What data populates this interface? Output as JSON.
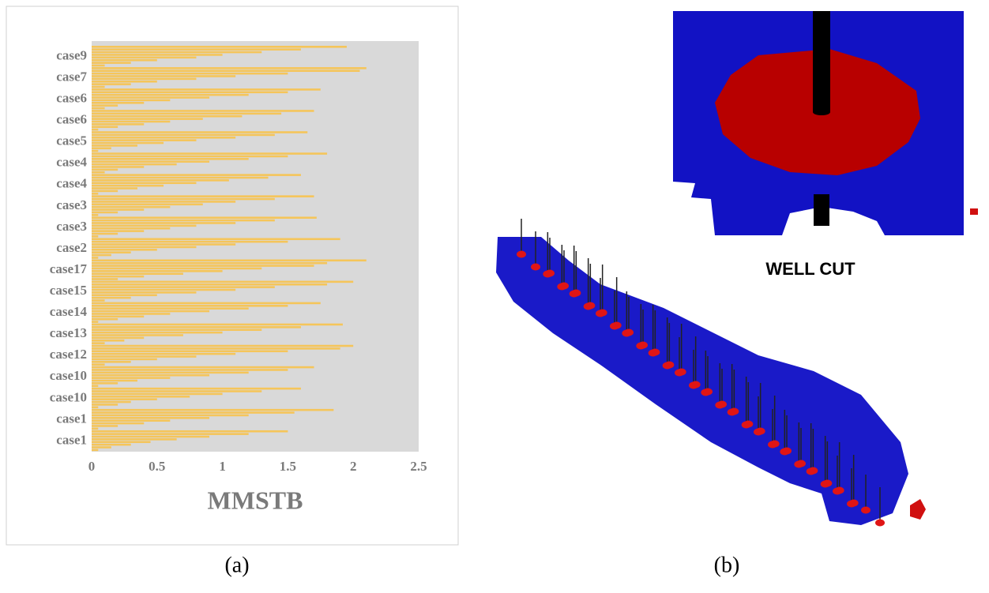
{
  "chart_data": {
    "type": "bar",
    "categories": [
      "case9",
      "case7",
      "case6",
      "case6",
      "case5",
      "case4",
      "case4",
      "case3",
      "case3",
      "case2",
      "case17",
      "case15",
      "case14",
      "case13",
      "case12",
      "case10",
      "case10",
      "case1",
      "case1"
    ],
    "values": [
      [
        1.95,
        1.6,
        1.3,
        1.0,
        0.8,
        0.5,
        0.3,
        0.1
      ],
      [
        2.1,
        2.05,
        1.5,
        1.1,
        0.8,
        0.5,
        0.3,
        0.1
      ],
      [
        1.75,
        1.5,
        1.2,
        0.9,
        0.6,
        0.4,
        0.2,
        0.1
      ],
      [
        1.7,
        1.45,
        1.15,
        0.85,
        0.6,
        0.4,
        0.2,
        0.05
      ],
      [
        1.65,
        1.4,
        1.1,
        0.8,
        0.55,
        0.35,
        0.15,
        0.05
      ],
      [
        1.8,
        1.5,
        1.2,
        0.9,
        0.65,
        0.4,
        0.2,
        0.1
      ],
      [
        1.6,
        1.35,
        1.05,
        0.8,
        0.55,
        0.35,
        0.2,
        0.05
      ],
      [
        1.7,
        1.4,
        1.1,
        0.85,
        0.6,
        0.4,
        0.2,
        0.05
      ],
      [
        1.72,
        1.4,
        1.1,
        0.8,
        0.6,
        0.4,
        0.2,
        0.05
      ],
      [
        1.9,
        1.5,
        1.1,
        0.8,
        0.5,
        0.3,
        0.15,
        0.05
      ],
      [
        2.1,
        1.8,
        1.7,
        1.3,
        1.0,
        0.7,
        0.4,
        0.2
      ],
      [
        2.0,
        1.8,
        1.4,
        1.1,
        0.8,
        0.5,
        0.3,
        0.1
      ],
      [
        1.75,
        1.5,
        1.2,
        0.9,
        0.6,
        0.4,
        0.2,
        0.05
      ],
      [
        1.92,
        1.6,
        1.3,
        1.0,
        0.7,
        0.4,
        0.25,
        0.1
      ],
      [
        2.0,
        1.9,
        1.5,
        1.1,
        0.8,
        0.5,
        0.3,
        0.1
      ],
      [
        1.7,
        1.5,
        1.2,
        0.9,
        0.6,
        0.35,
        0.2,
        0.05
      ],
      [
        1.6,
        1.3,
        1.0,
        0.75,
        0.5,
        0.3,
        0.2,
        0.05
      ],
      [
        1.85,
        1.55,
        1.2,
        0.9,
        0.6,
        0.4,
        0.2,
        0.05
      ],
      [
        1.5,
        1.2,
        0.9,
        0.65,
        0.45,
        0.3,
        0.15,
        0.05
      ]
    ],
    "color": "#f5c55a",
    "xlabel": "MMSTB",
    "xlim": [
      0,
      2.5
    ],
    "xticks": [
      0,
      0.5,
      1,
      1.5,
      2,
      2.5
    ]
  },
  "inset_label": "WELL CUT",
  "captions": [
    "(a)",
    "(b)"
  ]
}
